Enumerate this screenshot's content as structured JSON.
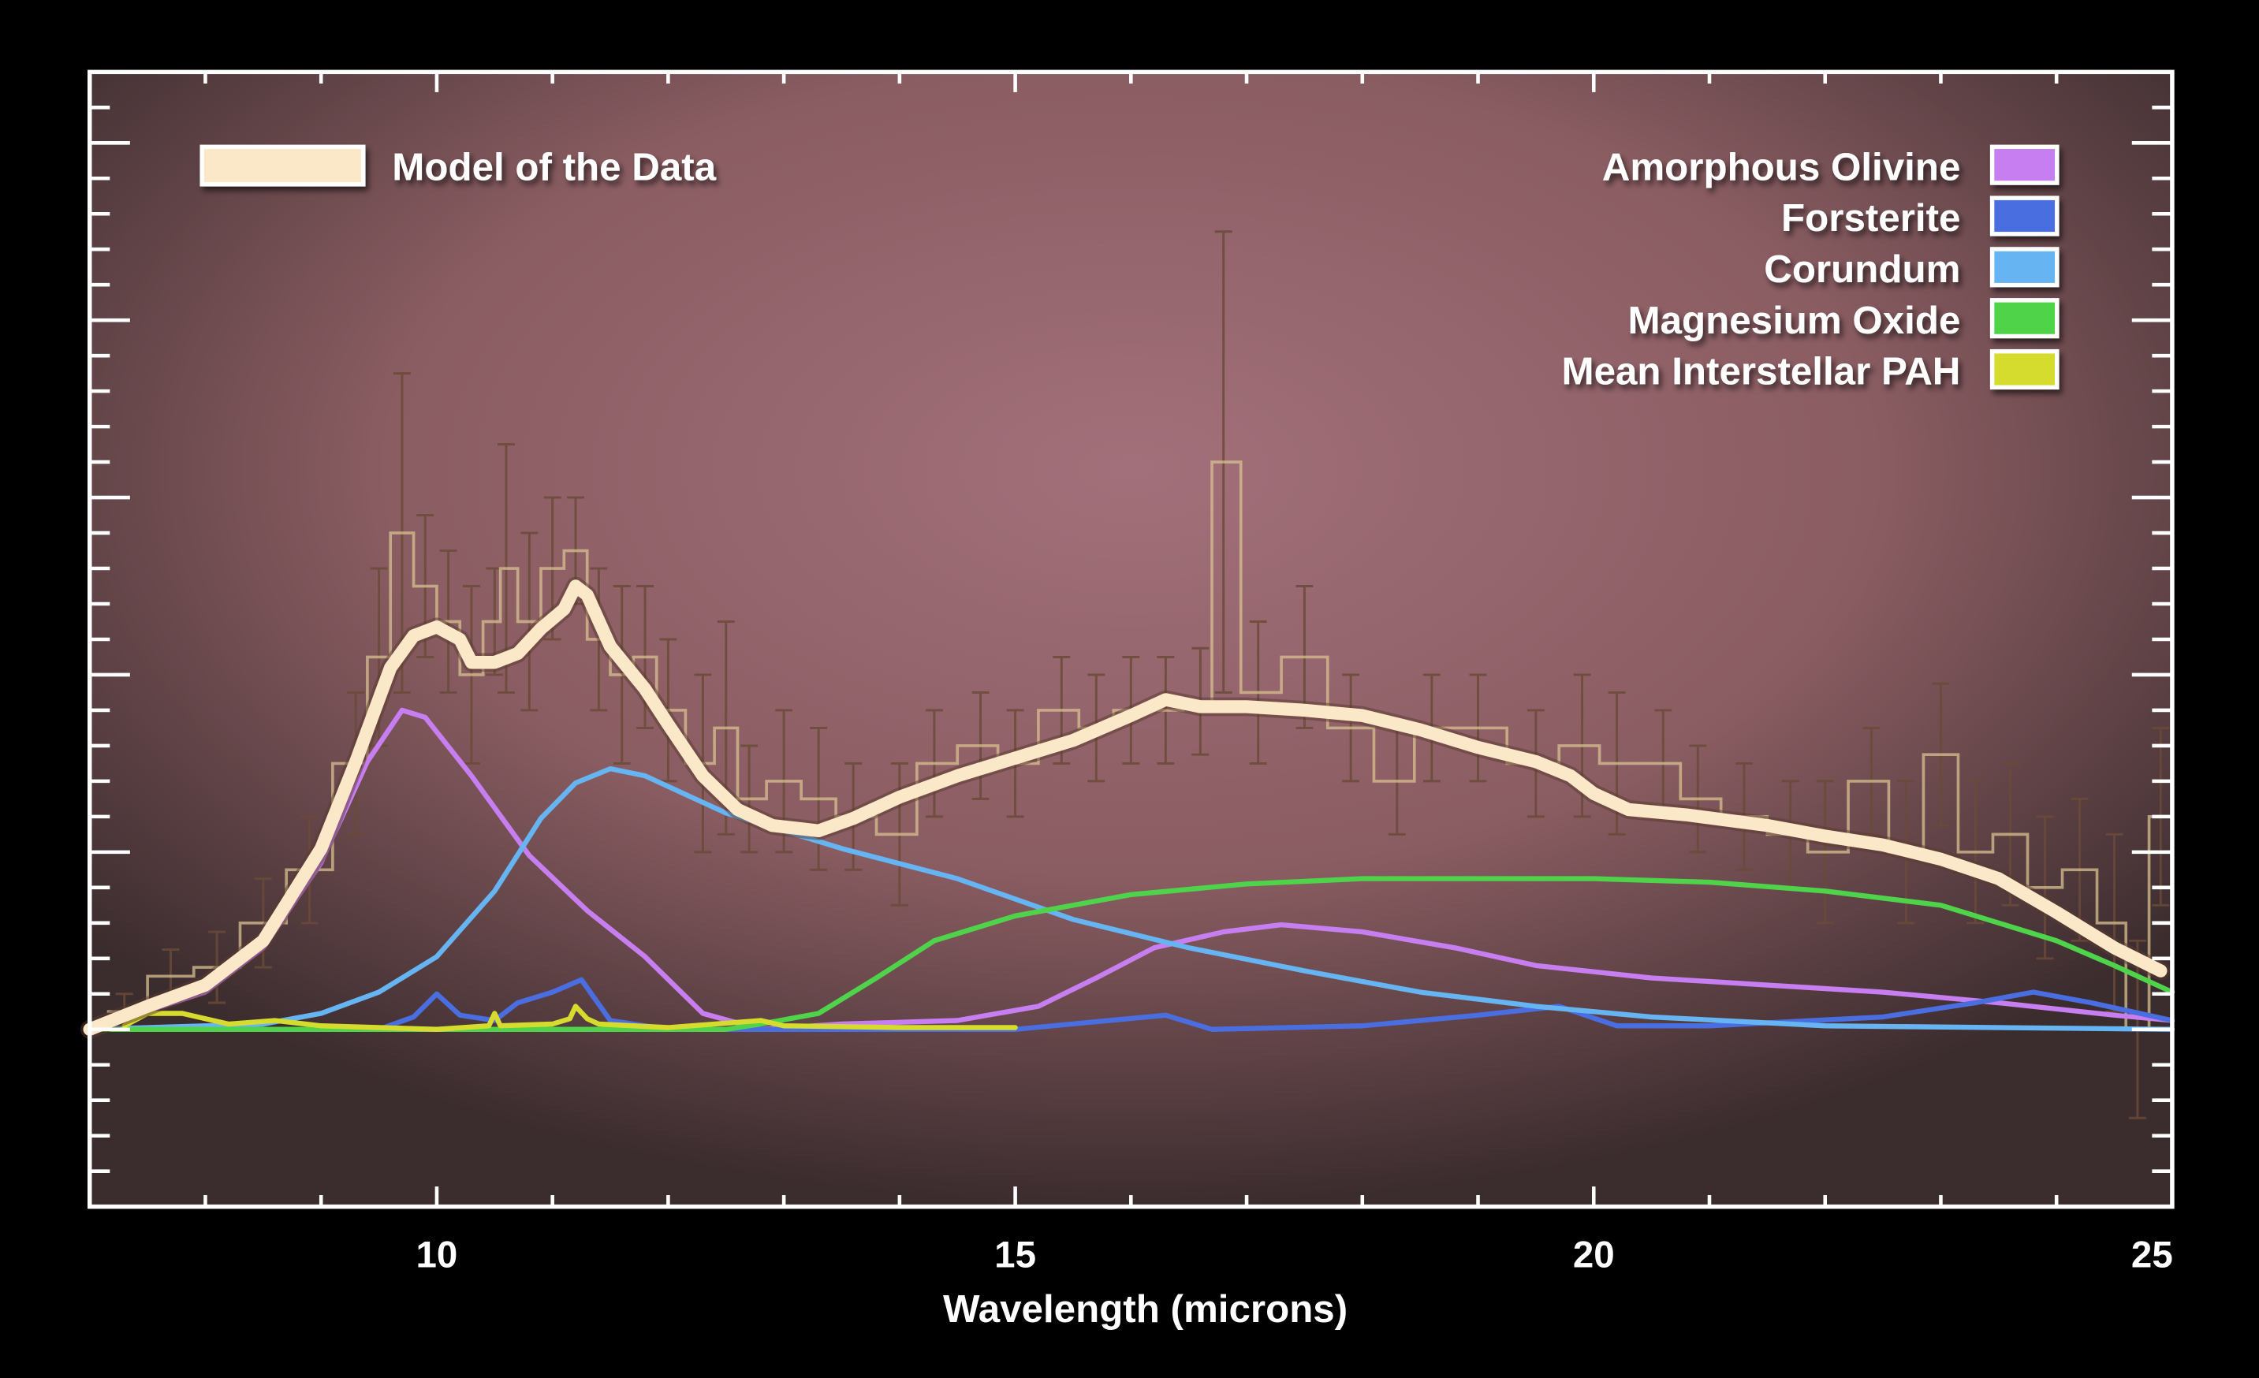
{
  "chart_data": {
    "type": "line",
    "title": "",
    "xlabel": "Wavelength (microns)",
    "ylabel": "",
    "xlim": [
      7,
      25
    ],
    "ylim": [
      -1,
      5.4
    ],
    "x_ticks": [
      10,
      15,
      20,
      25
    ],
    "x_tick_labels": [
      "10",
      "15",
      "20",
      "25"
    ],
    "y_tick_labels_shown": false,
    "grid": false,
    "background_color": "#9a6a70",
    "legend": {
      "left": {
        "placement": "top-left",
        "entries": [
          {
            "label": "Model of the Data",
            "color": "#fbe8c8"
          }
        ]
      },
      "right": {
        "placement": "top-right",
        "entries": [
          {
            "label": "Amorphous Olivine",
            "color": "#c77ef0"
          },
          {
            "label": "Forsterite",
            "color": "#4a6ee0"
          },
          {
            "label": "Corundum",
            "color": "#66b4f2"
          },
          {
            "label": "Magnesium Oxide",
            "color": "#4fd34a"
          },
          {
            "label": "Mean Interstellar PAH",
            "color": "#d6dc2e"
          }
        ]
      }
    },
    "measured_data": {
      "color": "#d8c090",
      "error_color": "#6a4a38",
      "points": [
        [
          7.3,
          0.1,
          0.1
        ],
        [
          7.7,
          0.3,
          0.15
        ],
        [
          8.1,
          0.35,
          0.2
        ],
        [
          8.5,
          0.6,
          0.25
        ],
        [
          8.9,
          0.9,
          0.3
        ],
        [
          9.3,
          1.5,
          0.4
        ],
        [
          9.5,
          2.1,
          0.5
        ],
        [
          9.7,
          2.8,
          0.9
        ],
        [
          9.9,
          2.5,
          0.4
        ],
        [
          10.1,
          2.3,
          0.4
        ],
        [
          10.3,
          2.0,
          0.5
        ],
        [
          10.5,
          2.3,
          0.3
        ],
        [
          10.6,
          2.6,
          0.7
        ],
        [
          10.8,
          2.3,
          0.5
        ],
        [
          11.0,
          2.6,
          0.4
        ],
        [
          11.2,
          2.7,
          0.3
        ],
        [
          11.4,
          2.2,
          0.4
        ],
        [
          11.6,
          2.0,
          0.5
        ],
        [
          11.8,
          2.1,
          0.4
        ],
        [
          12.0,
          1.8,
          0.4
        ],
        [
          12.3,
          1.5,
          0.5
        ],
        [
          12.5,
          1.7,
          0.6
        ],
        [
          12.7,
          1.3,
          0.3
        ],
        [
          13.0,
          1.4,
          0.4
        ],
        [
          13.3,
          1.3,
          0.4
        ],
        [
          13.6,
          1.2,
          0.3
        ],
        [
          14.0,
          1.1,
          0.4
        ],
        [
          14.3,
          1.5,
          0.3
        ],
        [
          14.7,
          1.6,
          0.3
        ],
        [
          15.0,
          1.5,
          0.3
        ],
        [
          15.4,
          1.8,
          0.3
        ],
        [
          15.7,
          1.7,
          0.3
        ],
        [
          16.0,
          1.8,
          0.3
        ],
        [
          16.3,
          1.8,
          0.3
        ],
        [
          16.6,
          1.85,
          0.3
        ],
        [
          16.8,
          3.2,
          1.3
        ],
        [
          17.1,
          1.9,
          0.4
        ],
        [
          17.5,
          2.1,
          0.4
        ],
        [
          17.9,
          1.7,
          0.3
        ],
        [
          18.3,
          1.4,
          0.3
        ],
        [
          18.6,
          1.7,
          0.3
        ],
        [
          19.0,
          1.7,
          0.3
        ],
        [
          19.5,
          1.5,
          0.3
        ],
        [
          19.9,
          1.6,
          0.4
        ],
        [
          20.2,
          1.5,
          0.4
        ],
        [
          20.6,
          1.5,
          0.3
        ],
        [
          20.9,
          1.3,
          0.3
        ],
        [
          21.3,
          1.2,
          0.3
        ],
        [
          21.7,
          1.1,
          0.3
        ],
        [
          22.0,
          1.0,
          0.4
        ],
        [
          22.4,
          1.4,
          0.3
        ],
        [
          22.7,
          1.0,
          0.4
        ],
        [
          23.0,
          1.55,
          0.4
        ],
        [
          23.3,
          1.0,
          0.4
        ],
        [
          23.6,
          1.1,
          0.4
        ],
        [
          23.9,
          0.8,
          0.4
        ],
        [
          24.2,
          0.9,
          0.4
        ],
        [
          24.5,
          0.6,
          0.5
        ],
        [
          24.7,
          0.0,
          0.5
        ],
        [
          24.9,
          1.2,
          0.5
        ]
      ]
    },
    "series": [
      {
        "name": "Model of the Data",
        "color": "#fbe8c8",
        "x": [
          7.0,
          7.5,
          8.0,
          8.5,
          9.0,
          9.3,
          9.6,
          9.8,
          10.0,
          10.2,
          10.3,
          10.5,
          10.7,
          10.9,
          11.1,
          11.2,
          11.3,
          11.5,
          11.8,
          12.0,
          12.3,
          12.6,
          12.9,
          13.3,
          13.6,
          14.0,
          14.5,
          15.0,
          15.5,
          16.0,
          16.3,
          16.6,
          17.0,
          17.5,
          18.0,
          18.5,
          19.0,
          19.5,
          19.8,
          20.0,
          20.3,
          20.8,
          21.5,
          22.0,
          22.5,
          23.0,
          23.5,
          24.0,
          24.5,
          24.9
        ],
        "y": [
          0,
          0.13,
          0.25,
          0.5,
          1.02,
          1.51,
          2.04,
          2.22,
          2.27,
          2.2,
          2.07,
          2.07,
          2.12,
          2.26,
          2.37,
          2.5,
          2.45,
          2.16,
          1.92,
          1.72,
          1.43,
          1.24,
          1.15,
          1.12,
          1.19,
          1.31,
          1.43,
          1.53,
          1.63,
          1.77,
          1.86,
          1.82,
          1.82,
          1.8,
          1.77,
          1.69,
          1.59,
          1.51,
          1.43,
          1.33,
          1.24,
          1.21,
          1.15,
          1.09,
          1.04,
          0.96,
          0.85,
          0.66,
          0.46,
          0.33
        ]
      },
      {
        "name": "Amorphous Olivine",
        "color": "#c77ef0",
        "x": [
          7.0,
          8.0,
          8.5,
          9.0,
          9.4,
          9.7,
          9.9,
          10.3,
          10.8,
          11.3,
          11.8,
          12.3,
          12.8,
          13.5,
          14.5,
          15.2,
          15.7,
          16.2,
          16.8,
          17.3,
          18.0,
          18.8,
          19.5,
          20.5,
          21.5,
          22.5,
          23.5,
          24.5,
          25.0
        ],
        "y": [
          0,
          0.21,
          0.46,
          0.94,
          1.51,
          1.8,
          1.76,
          1.43,
          0.98,
          0.67,
          0.41,
          0.09,
          0,
          0.03,
          0.05,
          0.13,
          0.29,
          0.46,
          0.55,
          0.59,
          0.55,
          0.46,
          0.36,
          0.29,
          0.25,
          0.21,
          0.15,
          0.08,
          0.05
        ]
      },
      {
        "name": "Forsterite",
        "color": "#4a6ee0",
        "x": [
          7.0,
          9.5,
          9.8,
          10.0,
          10.2,
          10.5,
          10.7,
          11.0,
          11.25,
          11.5,
          12.0,
          15.0,
          16.3,
          16.7,
          18.0,
          19.0,
          19.7,
          20.2,
          21.0,
          22.5,
          23.3,
          23.8,
          24.3,
          25.0
        ],
        "y": [
          0,
          0,
          0.07,
          0.2,
          0.08,
          0.05,
          0.15,
          0.21,
          0.28,
          0.05,
          0,
          0,
          0.08,
          0,
          0.02,
          0.08,
          0.13,
          0.02,
          0.02,
          0.07,
          0.15,
          0.21,
          0.15,
          0.05
        ]
      },
      {
        "name": "Corundum",
        "color": "#66b4f2",
        "x": [
          7.0,
          8.5,
          9.0,
          9.5,
          10.0,
          10.5,
          10.9,
          11.2,
          11.5,
          11.8,
          12.5,
          13.5,
          14.5,
          15.5,
          16.5,
          17.5,
          18.5,
          19.5,
          20.5,
          22.0,
          25.0
        ],
        "y": [
          0,
          0.03,
          0.09,
          0.21,
          0.41,
          0.78,
          1.19,
          1.39,
          1.47,
          1.43,
          1.22,
          1.02,
          0.85,
          0.62,
          0.46,
          0.33,
          0.21,
          0.13,
          0.07,
          0.02,
          0
        ]
      },
      {
        "name": "Magnesium Oxide",
        "color": "#4fd34a",
        "x": [
          7.0,
          12.5,
          12.8,
          13.3,
          13.8,
          14.3,
          15.0,
          16.0,
          17.0,
          18.0,
          19.0,
          20.0,
          21.0,
          22.0,
          23.0,
          24.0,
          24.5,
          25.0
        ],
        "y": [
          0,
          0,
          0.03,
          0.09,
          0.29,
          0.5,
          0.64,
          0.76,
          0.82,
          0.85,
          0.85,
          0.85,
          0.83,
          0.78,
          0.7,
          0.5,
          0.36,
          0.21
        ]
      },
      {
        "name": "Mean Interstellar PAH",
        "color": "#d6dc2e",
        "x": [
          7.3,
          7.5,
          7.8,
          8.2,
          8.6,
          9.0,
          10.0,
          10.45,
          10.5,
          10.55,
          11.0,
          11.15,
          11.2,
          11.3,
          11.4,
          12.0,
          12.8,
          13.0,
          14.0,
          15.0
        ],
        "y": [
          0.02,
          0.09,
          0.09,
          0.03,
          0.05,
          0.02,
          0,
          0.02,
          0.09,
          0.02,
          0.03,
          0.06,
          0.13,
          0.06,
          0.03,
          0.01,
          0.05,
          0.02,
          0.01,
          0.01
        ]
      }
    ]
  }
}
